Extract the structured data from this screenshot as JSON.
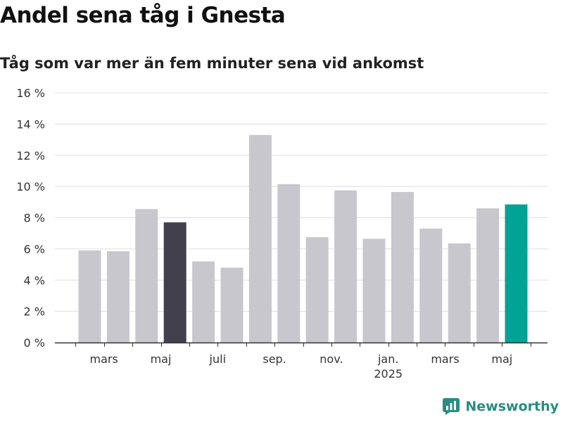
{
  "title": "Andel sena tåg i Gnesta",
  "subtitle": "Tåg som var mer än fem minuter sena vid ankomst",
  "brand": {
    "name": "Newsworthy",
    "icon": "newsworthy-logo-icon",
    "color": "#2a8c82"
  },
  "chart_data": {
    "type": "bar",
    "title": "Andel sena tåg i Gnesta",
    "subtitle": "Tåg som var mer än fem minuter sena vid ankomst",
    "xlabel": "",
    "ylabel": "",
    "ylim": [
      0,
      16
    ],
    "yticks": [
      0,
      2,
      4,
      6,
      8,
      10,
      12,
      14,
      16
    ],
    "ytick_labels": [
      "0 %",
      "2 %",
      "4 %",
      "6 %",
      "8 %",
      "10 %",
      "12 %",
      "14 %",
      "16 %"
    ],
    "grid": true,
    "values": [
      5.9,
      5.85,
      8.55,
      7.7,
      5.2,
      4.8,
      13.3,
      10.15,
      6.75,
      9.75,
      6.65,
      9.65,
      7.3,
      6.35,
      8.6,
      8.85
    ],
    "colors": [
      "#c8c7cd",
      "#c8c7cd",
      "#c8c7cd",
      "#42404c",
      "#c8c7cd",
      "#c8c7cd",
      "#c8c7cd",
      "#c8c7cd",
      "#c8c7cd",
      "#c8c7cd",
      "#c8c7cd",
      "#c8c7cd",
      "#c8c7cd",
      "#c8c7cd",
      "#c8c7cd",
      "#00a396"
    ],
    "xtick_labels": [
      {
        "after_bar": 1,
        "label": "mars",
        "sub": ""
      },
      {
        "after_bar": 3,
        "label": "maj",
        "sub": ""
      },
      {
        "after_bar": 5,
        "label": "juli",
        "sub": ""
      },
      {
        "after_bar": 7,
        "label": "sep.",
        "sub": ""
      },
      {
        "after_bar": 9,
        "label": "nov.",
        "sub": ""
      },
      {
        "after_bar": 11,
        "label": "jan.",
        "sub": "2025"
      },
      {
        "after_bar": 13,
        "label": "mars",
        "sub": ""
      },
      {
        "after_bar": 15,
        "label": "maj",
        "sub": ""
      }
    ],
    "legend": "none"
  }
}
